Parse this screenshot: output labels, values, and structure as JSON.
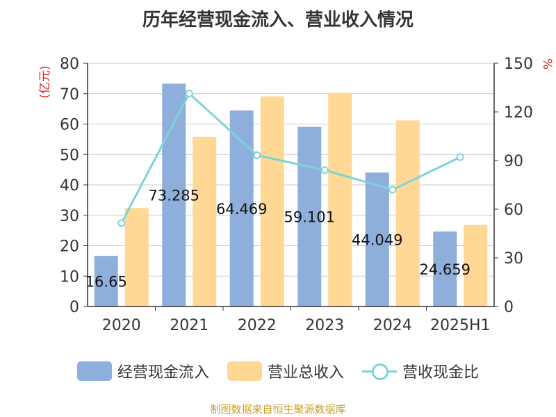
{
  "title": "历年经营现金流入、营业收入情况",
  "source": "制图数据来自恒生聚源数据库",
  "colors": {
    "cash": "#8eaedc",
    "revenue": "#fed894",
    "ratio": "#7fd3d8",
    "axis_unit": "#e02020"
  },
  "chart_data": {
    "type": "bar",
    "title": "历年经营现金流入、营业收入情况",
    "categories": [
      "2020",
      "2021",
      "2022",
      "2023",
      "2024",
      "2025H1"
    ],
    "left_axis": {
      "unit": "(亿元)",
      "ylim": [
        0,
        80
      ],
      "ticks": [
        "0",
        "10",
        "20",
        "30",
        "40",
        "50",
        "60",
        "70",
        "80"
      ]
    },
    "right_axis": {
      "unit": "%",
      "ylim": [
        0,
        150
      ],
      "ticks": [
        "0",
        "30",
        "60",
        "90",
        "120",
        "150"
      ]
    },
    "grid": true,
    "legend_position": "bottom",
    "series": [
      {
        "name": "经营现金流入",
        "type": "bar",
        "axis": "left",
        "values": [
          16.653,
          73.285,
          64.469,
          59.101,
          44.049,
          24.659
        ],
        "labels": [
          "16.65",
          "73.285",
          "64.469",
          "59.101",
          "44.049",
          "24.659"
        ]
      },
      {
        "name": "营业总收入",
        "type": "bar",
        "axis": "left",
        "values": [
          32.4,
          55.8,
          69.1,
          70.3,
          61.2,
          26.8
        ]
      },
      {
        "name": "营收现金比",
        "type": "line",
        "axis": "right",
        "values": [
          51.4,
          131.4,
          93.3,
          84.1,
          72.0,
          92.1
        ]
      }
    ]
  }
}
